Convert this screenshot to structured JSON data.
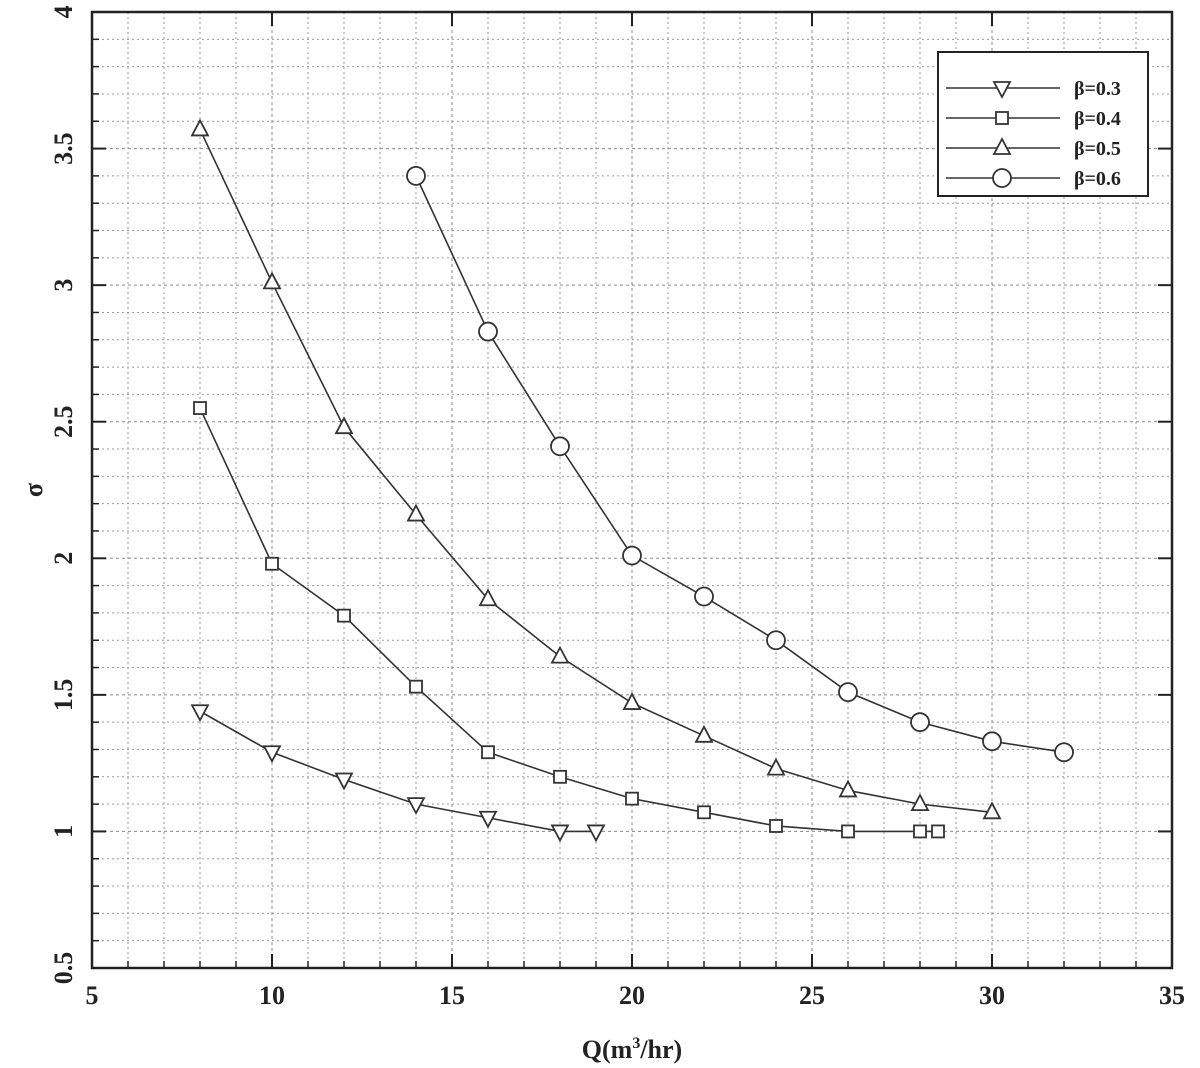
{
  "chart_data": {
    "type": "line",
    "title": "",
    "xlabel_main": "Q(m",
    "xlabel_sup": "3",
    "xlabel_tail": "/hr)",
    "ylabel": "σ",
    "xlim": [
      5,
      35
    ],
    "ylim": [
      0.5,
      4
    ],
    "xticks": [
      5,
      10,
      15,
      20,
      25,
      30,
      35
    ],
    "yticks": [
      0.5,
      1,
      1.5,
      2,
      2.5,
      3,
      3.5,
      4
    ],
    "grid": true,
    "legend_position": "top-right",
    "series": [
      {
        "name": "β=0.3",
        "marker": "triangle-down",
        "x": [
          8,
          10,
          12,
          14,
          16,
          18,
          19
        ],
        "y": [
          1.44,
          1.29,
          1.19,
          1.1,
          1.05,
          1.0,
          1.0
        ]
      },
      {
        "name": "β=0.4",
        "marker": "square",
        "x": [
          8,
          10,
          12,
          14,
          16,
          18,
          20,
          22,
          24,
          26,
          28,
          28.5
        ],
        "y": [
          2.55,
          1.98,
          1.79,
          1.53,
          1.29,
          1.2,
          1.12,
          1.07,
          1.02,
          1.0,
          1.0,
          1.0
        ]
      },
      {
        "name": "β=0.5",
        "marker": "triangle-up",
        "x": [
          8,
          10,
          12,
          14,
          16,
          18,
          20,
          22,
          24,
          26,
          28,
          30
        ],
        "y": [
          3.57,
          3.01,
          2.48,
          2.16,
          1.85,
          1.64,
          1.47,
          1.35,
          1.23,
          1.15,
          1.1,
          1.07
        ]
      },
      {
        "name": "β=0.6",
        "marker": "circle",
        "x": [
          14,
          16,
          18,
          20,
          22,
          24,
          26,
          28,
          30,
          32
        ],
        "y": [
          3.4,
          2.83,
          2.41,
          2.01,
          1.86,
          1.7,
          1.51,
          1.4,
          1.33,
          1.29
        ]
      }
    ]
  }
}
